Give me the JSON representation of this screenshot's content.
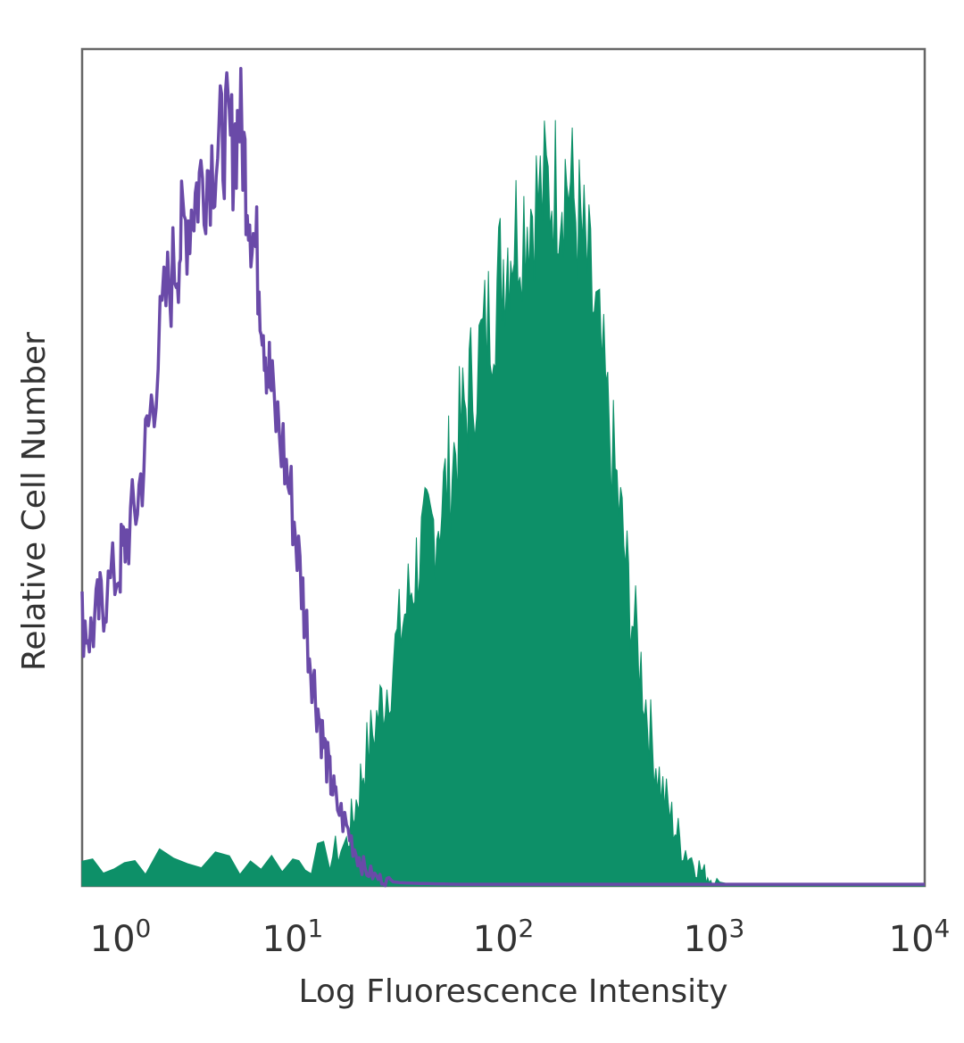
{
  "chart_data": {
    "type": "area",
    "title": "",
    "xlabel": "Log Fluorescence Intensity",
    "ylabel": "Relative Cell Number",
    "x_scale": "log",
    "xlim": [
      1,
      10000
    ],
    "ylim": [
      0,
      100
    ],
    "grid": false,
    "x_ticks": [
      {
        "value": 1,
        "base": "10",
        "exp": "0"
      },
      {
        "value": 10,
        "base": "10",
        "exp": "1"
      },
      {
        "value": 100,
        "base": "10",
        "exp": "2"
      },
      {
        "value": 1000,
        "base": "10",
        "exp": "3"
      },
      {
        "value": 10000,
        "base": "10",
        "exp": "4"
      }
    ],
    "series": [
      {
        "style": "outline",
        "color": "#6a4aa8",
        "x": [
          1,
          1.1,
          1.2,
          1.3,
          1.5,
          1.6,
          1.8,
          2,
          2.2,
          2.5,
          2.8,
          3,
          3.3,
          3.6,
          4,
          4.4,
          4.8,
          5.2,
          5.6,
          6,
          6.5,
          7,
          7.5,
          8,
          9,
          10,
          11,
          12,
          13,
          14,
          15,
          16,
          18,
          20,
          22,
          25,
          28,
          32,
          40,
          60,
          100,
          300,
          1000,
          10000
        ],
        "y": [
          32,
          30,
          33,
          35,
          38,
          41,
          45,
          52,
          60,
          70,
          75,
          78,
          81,
          84,
          86,
          88,
          90,
          88,
          92,
          85,
          78,
          72,
          64,
          58,
          52,
          45,
          36,
          28,
          22,
          17,
          13,
          10,
          7,
          4,
          2,
          1,
          0.6,
          0.4,
          0.3,
          0.2,
          0.2,
          0.2,
          0.2,
          0.2
        ]
      },
      {
        "style": "filled",
        "color": "#0d9068",
        "x": [
          1,
          2,
          5,
          10,
          15,
          18,
          20,
          22,
          25,
          28,
          32,
          36,
          40,
          45,
          50,
          56,
          63,
          70,
          80,
          90,
          100,
          110,
          125,
          140,
          160,
          180,
          200,
          225,
          250,
          280,
          320,
          360,
          400,
          450,
          500,
          560,
          630,
          700,
          800,
          900,
          1000,
          1200,
          1500,
          10000
        ],
        "y": [
          3,
          3,
          3,
          3,
          3.5,
          5,
          10,
          15,
          20,
          24,
          30,
          35,
          40,
          42,
          45,
          50,
          55,
          60,
          65,
          70,
          75,
          78,
          80,
          82,
          83,
          84,
          85,
          80,
          74,
          66,
          54,
          44,
          34,
          26,
          18,
          12,
          8,
          5,
          3,
          1.5,
          0.6,
          0.2,
          0,
          0
        ]
      }
    ]
  }
}
